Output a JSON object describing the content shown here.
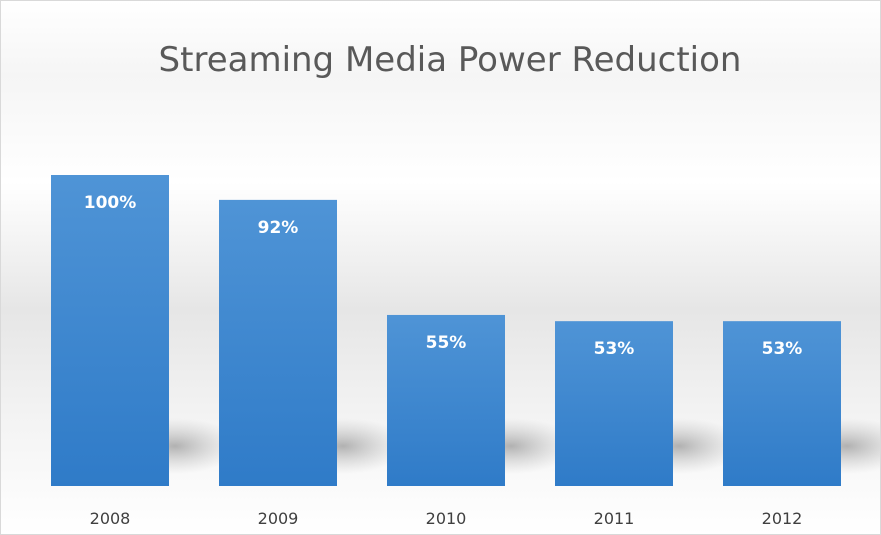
{
  "chart_data": {
    "type": "bar",
    "title": "Streaming Media Power Reduction",
    "categories": [
      "2008",
      "2009",
      "2010",
      "2011",
      "2012"
    ],
    "values": [
      100,
      92,
      55,
      53,
      53
    ],
    "data_labels": [
      "100%",
      "92%",
      "55%",
      "53%",
      "53%"
    ],
    "xlabel": "",
    "ylabel": "",
    "ylim": [
      0,
      100
    ],
    "grid": false,
    "legend": "none",
    "bar_color": "#3d85d0"
  }
}
